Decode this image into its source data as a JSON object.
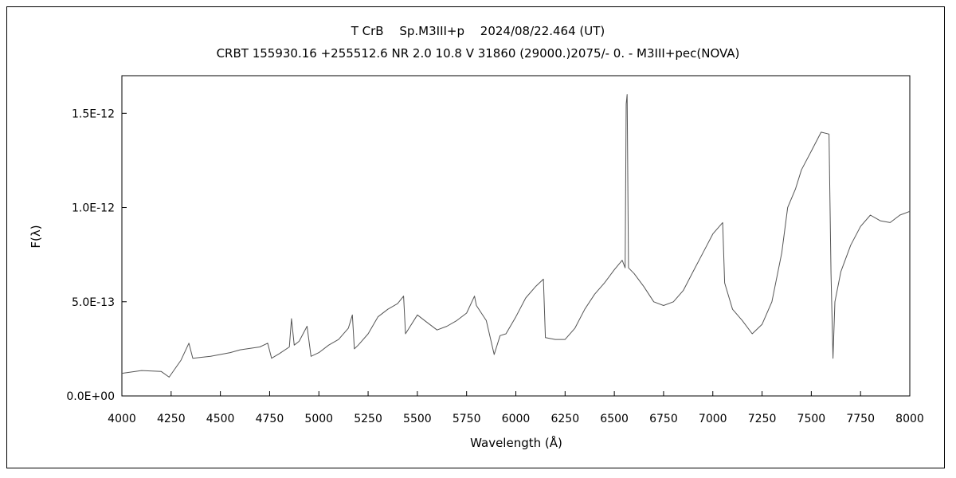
{
  "chart_data": {
    "type": "line",
    "title": "T CrB　 Sp.M3III+p　 2024/08/22.464 (UT)",
    "subtitle": "CRBT 155930.16 +255512.6 NR 2.0 10.8 V 31860 (29000.)2075/- 0. - M3III+pec(NOVA)",
    "xlabel": "Wavelength (Å)",
    "ylabel": "F(λ)",
    "xlim": [
      4000,
      8000
    ],
    "ylim": [
      0,
      1.7e-12
    ],
    "x_ticks": [
      4000,
      4250,
      4500,
      4750,
      5000,
      5250,
      5500,
      5750,
      6000,
      6250,
      6500,
      6750,
      7000,
      7250,
      7500,
      7750,
      8000
    ],
    "y_ticks": [
      {
        "value": 0,
        "label": "0.0E+00"
      },
      {
        "value": 5e-13,
        "label": "5.0E-13"
      },
      {
        "value": 1e-12,
        "label": "1.0E-12"
      },
      {
        "value": 1.5e-12,
        "label": "1.5E-12"
      }
    ],
    "grid": false,
    "line_color": "#555555",
    "series": [
      {
        "points": [
          [
            4000,
            1.2e-13
          ],
          [
            4100,
            1.35e-13
          ],
          [
            4200,
            1.3e-13
          ],
          [
            4240,
            1e-13
          ],
          [
            4300,
            1.9e-13
          ],
          [
            4340,
            2.8e-13
          ],
          [
            4360,
            2e-13
          ],
          [
            4450,
            2.1e-13
          ],
          [
            4550,
            2.3e-13
          ],
          [
            4600,
            2.45e-13
          ],
          [
            4700,
            2.6e-13
          ],
          [
            4740,
            2.8e-13
          ],
          [
            4760,
            2e-13
          ],
          [
            4800,
            2.25e-13
          ],
          [
            4850,
            2.6e-13
          ],
          [
            4861,
            4.1e-13
          ],
          [
            4875,
            2.7e-13
          ],
          [
            4900,
            2.9e-13
          ],
          [
            4940,
            3.7e-13
          ],
          [
            4960,
            2.1e-13
          ],
          [
            5000,
            2.3e-13
          ],
          [
            5050,
            2.7e-13
          ],
          [
            5100,
            3e-13
          ],
          [
            5150,
            3.6e-13
          ],
          [
            5170,
            4.3e-13
          ],
          [
            5180,
            2.5e-13
          ],
          [
            5200,
            2.7e-13
          ],
          [
            5250,
            3.3e-13
          ],
          [
            5300,
            4.2e-13
          ],
          [
            5350,
            4.6e-13
          ],
          [
            5400,
            4.9e-13
          ],
          [
            5430,
            5.3e-13
          ],
          [
            5440,
            3.3e-13
          ],
          [
            5500,
            4.3e-13
          ],
          [
            5550,
            3.9e-13
          ],
          [
            5600,
            3.5e-13
          ],
          [
            5650,
            3.7e-13
          ],
          [
            5700,
            4e-13
          ],
          [
            5750,
            4.4e-13
          ],
          [
            5790,
            5.3e-13
          ],
          [
            5800,
            4.8e-13
          ],
          [
            5850,
            4e-13
          ],
          [
            5890,
            2.2e-13
          ],
          [
            5920,
            3.2e-13
          ],
          [
            5950,
            3.3e-13
          ],
          [
            6000,
            4.2e-13
          ],
          [
            6050,
            5.2e-13
          ],
          [
            6100,
            5.8e-13
          ],
          [
            6140,
            6.2e-13
          ],
          [
            6150,
            3.1e-13
          ],
          [
            6200,
            3e-13
          ],
          [
            6250,
            3e-13
          ],
          [
            6300,
            3.6e-13
          ],
          [
            6350,
            4.6e-13
          ],
          [
            6400,
            5.4e-13
          ],
          [
            6450,
            6e-13
          ],
          [
            6500,
            6.7e-13
          ],
          [
            6540,
            7.2e-13
          ],
          [
            6555,
            6.8e-13
          ],
          [
            6560,
            1.55e-12
          ],
          [
            6565,
            1.6e-12
          ],
          [
            6572,
            6.8e-13
          ],
          [
            6600,
            6.5e-13
          ],
          [
            6650,
            5.8e-13
          ],
          [
            6700,
            5e-13
          ],
          [
            6750,
            4.8e-13
          ],
          [
            6800,
            5e-13
          ],
          [
            6850,
            5.6e-13
          ],
          [
            6900,
            6.6e-13
          ],
          [
            6950,
            7.6e-13
          ],
          [
            7000,
            8.6e-13
          ],
          [
            7050,
            9.2e-13
          ],
          [
            7060,
            6e-13
          ],
          [
            7100,
            4.6e-13
          ],
          [
            7150,
            4e-13
          ],
          [
            7200,
            3.3e-13
          ],
          [
            7250,
            3.8e-13
          ],
          [
            7300,
            5e-13
          ],
          [
            7350,
            7.6e-13
          ],
          [
            7380,
            1e-12
          ],
          [
            7420,
            1.1e-12
          ],
          [
            7450,
            1.2e-12
          ],
          [
            7500,
            1.3e-12
          ],
          [
            7550,
            1.4e-12
          ],
          [
            7590,
            1.39e-12
          ],
          [
            7600,
            6.5e-13
          ],
          [
            7610,
            2e-13
          ],
          [
            7620,
            5e-13
          ],
          [
            7650,
            6.6e-13
          ],
          [
            7700,
            8e-13
          ],
          [
            7750,
            9e-13
          ],
          [
            7800,
            9.6e-13
          ],
          [
            7850,
            9.3e-13
          ],
          [
            7900,
            9.2e-13
          ],
          [
            7950,
            9.6e-13
          ],
          [
            8000,
            9.8e-13
          ]
        ]
      }
    ]
  }
}
